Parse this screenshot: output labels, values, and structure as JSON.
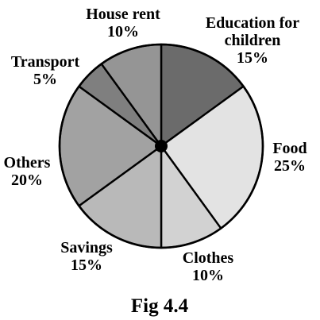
{
  "chart_data": {
    "type": "pie",
    "slices": [
      {
        "label": [
          "Education for",
          "children"
        ],
        "value": 15,
        "value_label": "15%",
        "color": "#6b6b6b"
      },
      {
        "label": [
          "Food"
        ],
        "value": 25,
        "value_label": "25%",
        "color": "#e3e3e3"
      },
      {
        "label": [
          "Clothes"
        ],
        "value": 10,
        "value_label": "10%",
        "color": "#d2d2d2"
      },
      {
        "label": [
          "Savings"
        ],
        "value": 15,
        "value_label": "15%",
        "color": "#b9b9b9"
      },
      {
        "label": [
          "Others"
        ],
        "value": 20,
        "value_label": "20%",
        "color": "#a2a2a2"
      },
      {
        "label": [
          "Transport"
        ],
        "value": 5,
        "value_label": "5%",
        "color": "#7f7f7f"
      },
      {
        "label": [
          "House rent"
        ],
        "value": 10,
        "value_label": "10%",
        "color": "#959595"
      }
    ],
    "start_direction": "top",
    "rotation": "clockwise"
  },
  "caption": "Fig 4.4"
}
